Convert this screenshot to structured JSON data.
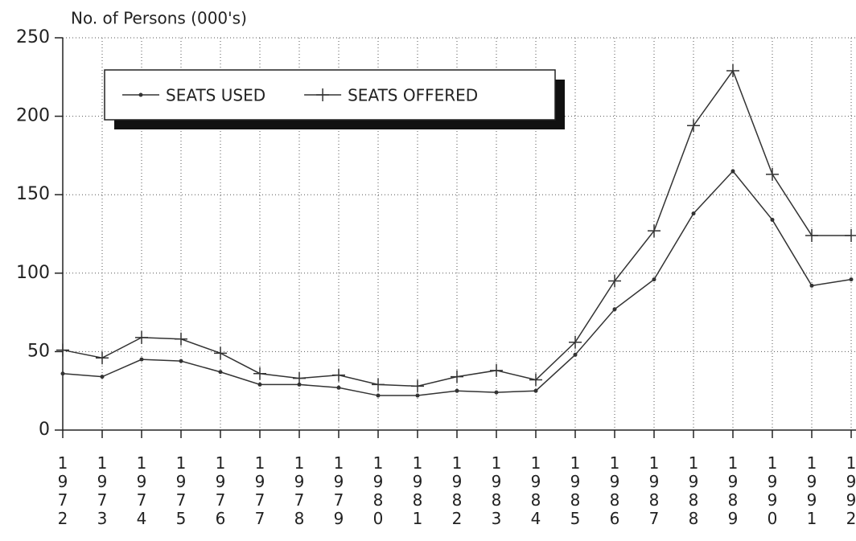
{
  "chart_data": {
    "type": "line",
    "y_axis_label": "No. of Persons (000's)",
    "categories": [
      "1972",
      "1973",
      "1974",
      "1975",
      "1976",
      "1977",
      "1978",
      "1979",
      "1980",
      "1981",
      "1982",
      "1983",
      "1984",
      "1985",
      "1986",
      "1987",
      "1988",
      "1989",
      "1990",
      "1991",
      "1992"
    ],
    "series": [
      {
        "name": "SEATS USED",
        "color": "#333333",
        "marker": "dot",
        "values": [
          36,
          34,
          45,
          44,
          37,
          29,
          29,
          27,
          22,
          22,
          25,
          24,
          25,
          48,
          77,
          96,
          138,
          165,
          134,
          92,
          96
        ]
      },
      {
        "name": "SEATS OFFERED",
        "color": "#333333",
        "marker": "plus",
        "values": [
          51,
          46,
          59,
          58,
          49,
          36,
          33,
          35,
          29,
          28,
          34,
          38,
          32,
          56,
          95,
          127,
          194,
          229,
          163,
          124,
          124
        ]
      }
    ],
    "ylim": [
      0,
      250
    ],
    "yticks": [
      0,
      50,
      100,
      150,
      200,
      250
    ],
    "grid": true,
    "legend": "top-left"
  }
}
